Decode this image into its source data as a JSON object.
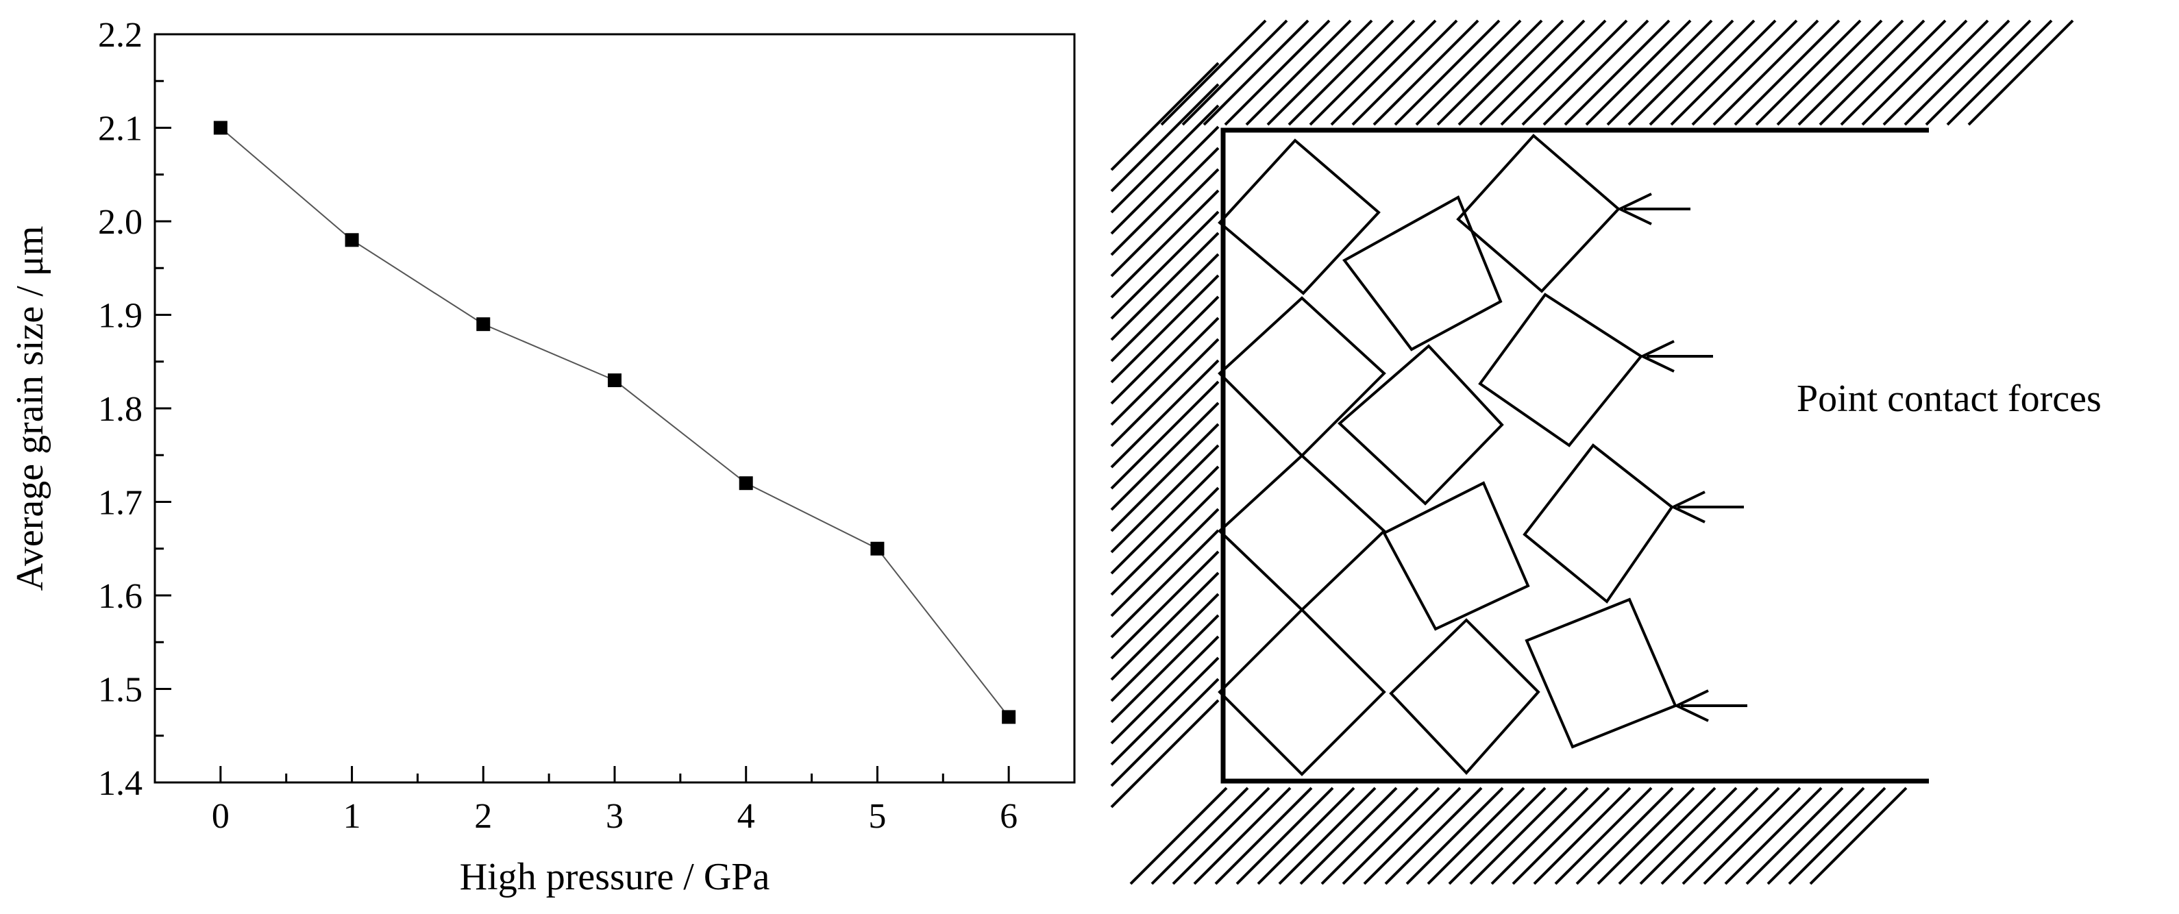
{
  "chart_data": {
    "type": "line",
    "markers": "square",
    "xlabel": "High pressure / GPa",
    "ylabel": "Average grain size / μm",
    "xlim": [
      -0.5,
      6.5
    ],
    "ylim": [
      1.4,
      2.2
    ],
    "xticks": [
      "0",
      "1",
      "2",
      "3",
      "4",
      "5",
      "6"
    ],
    "yticks": [
      "1.4",
      "1.5",
      "1.6",
      "1.7",
      "1.8",
      "1.9",
      "2.0",
      "2.1",
      "2.2"
    ],
    "grid": false,
    "x": [
      0,
      1,
      2,
      3,
      4,
      5,
      6
    ],
    "y": [
      2.1,
      1.98,
      1.89,
      1.83,
      1.72,
      1.65,
      1.47
    ]
  },
  "diagram": {
    "annotation": "Point contact forces",
    "force_arrow_count": 4
  }
}
